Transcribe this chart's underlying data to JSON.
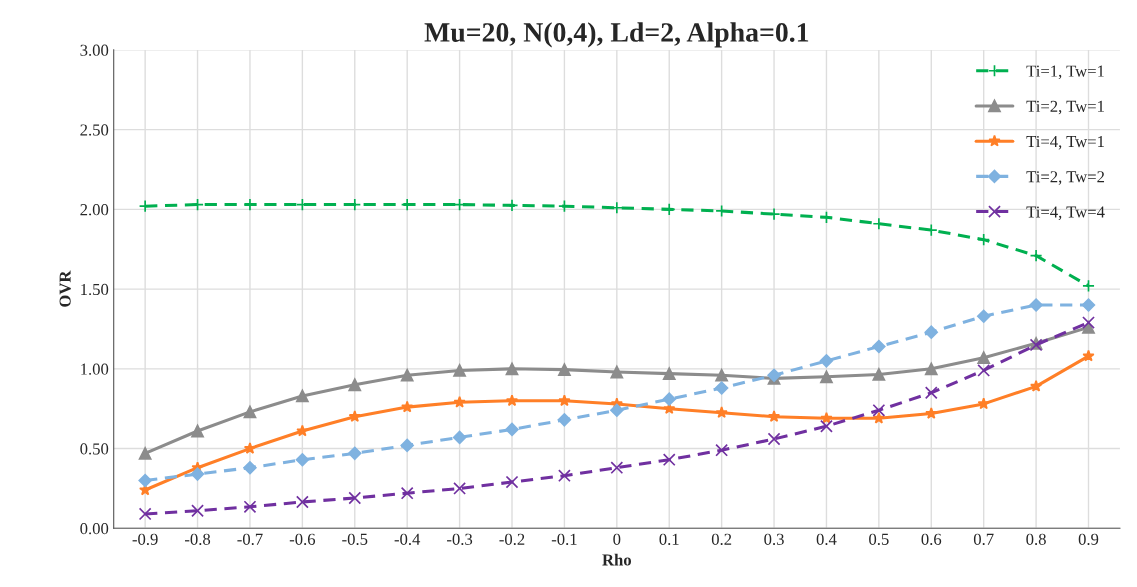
{
  "chart_data": {
    "type": "line",
    "title": "Mu=20, N(0,4), Ld=2, Alpha=0.1",
    "xlabel": "Rho",
    "ylabel": "OVR",
    "categories": [
      "-0.9",
      "-0.8",
      "-0.7",
      "-0.6",
      "-0.5",
      "-0.4",
      "-0.3",
      "-0.2",
      "-0.1",
      "0",
      "0.1",
      "0.2",
      "0.3",
      "0.4",
      "0.5",
      "0.6",
      "0.7",
      "0.8",
      "0.9"
    ],
    "ylim": [
      0,
      3
    ],
    "yticks": [
      {
        "value": 0,
        "label": "0.00"
      },
      {
        "value": 0.5,
        "label": "0.50"
      },
      {
        "value": 1,
        "label": "1.00"
      },
      {
        "value": 1.5,
        "label": "1.50"
      },
      {
        "value": 2,
        "label": "2.00"
      },
      {
        "value": 2.5,
        "label": "2.50"
      },
      {
        "value": 3,
        "label": "3.00"
      }
    ],
    "grid": true,
    "legend": "top right",
    "series": [
      {
        "name": "Ti=1, Tw=1",
        "color": "#00b050",
        "marker": "plus",
        "line_style": "dashed",
        "values": [
          2.02,
          2.03,
          2.03,
          2.03,
          2.03,
          2.03,
          2.03,
          2.025,
          2.02,
          2.01,
          2.0,
          1.99,
          1.97,
          1.95,
          1.91,
          1.87,
          1.81,
          1.71,
          1.52
        ]
      },
      {
        "name": "Ti=2, Tw=1",
        "color": "#8c8c8c",
        "marker": "triangle",
        "line_style": "solid",
        "values": [
          0.47,
          0.61,
          0.73,
          0.83,
          0.9,
          0.96,
          0.99,
          1.0,
          0.995,
          0.98,
          0.97,
          0.96,
          0.94,
          0.95,
          0.965,
          1.0,
          1.07,
          1.16,
          1.26
        ]
      },
      {
        "name": "Ti=4, Tw=1",
        "color": "#ff7f27",
        "marker": "star",
        "line_style": "solid",
        "values": [
          0.24,
          0.38,
          0.5,
          0.61,
          0.7,
          0.76,
          0.79,
          0.8,
          0.8,
          0.78,
          0.75,
          0.725,
          0.7,
          0.69,
          0.69,
          0.72,
          0.78,
          0.89,
          1.08
        ]
      },
      {
        "name": "Ti=2, Tw=2",
        "color": "#7fb2e0",
        "marker": "diamond",
        "line_style": "dashed",
        "values": [
          0.3,
          0.34,
          0.38,
          0.43,
          0.47,
          0.52,
          0.57,
          0.62,
          0.68,
          0.74,
          0.81,
          0.88,
          0.96,
          1.05,
          1.14,
          1.23,
          1.33,
          1.4,
          1.4
        ]
      },
      {
        "name": "Ti=4, Tw=4",
        "color": "#7030a0",
        "marker": "cross",
        "line_style": "dashed",
        "values": [
          0.09,
          0.11,
          0.135,
          0.165,
          0.19,
          0.22,
          0.25,
          0.29,
          0.33,
          0.38,
          0.43,
          0.49,
          0.56,
          0.64,
          0.74,
          0.85,
          0.99,
          1.15,
          1.29
        ]
      }
    ]
  }
}
